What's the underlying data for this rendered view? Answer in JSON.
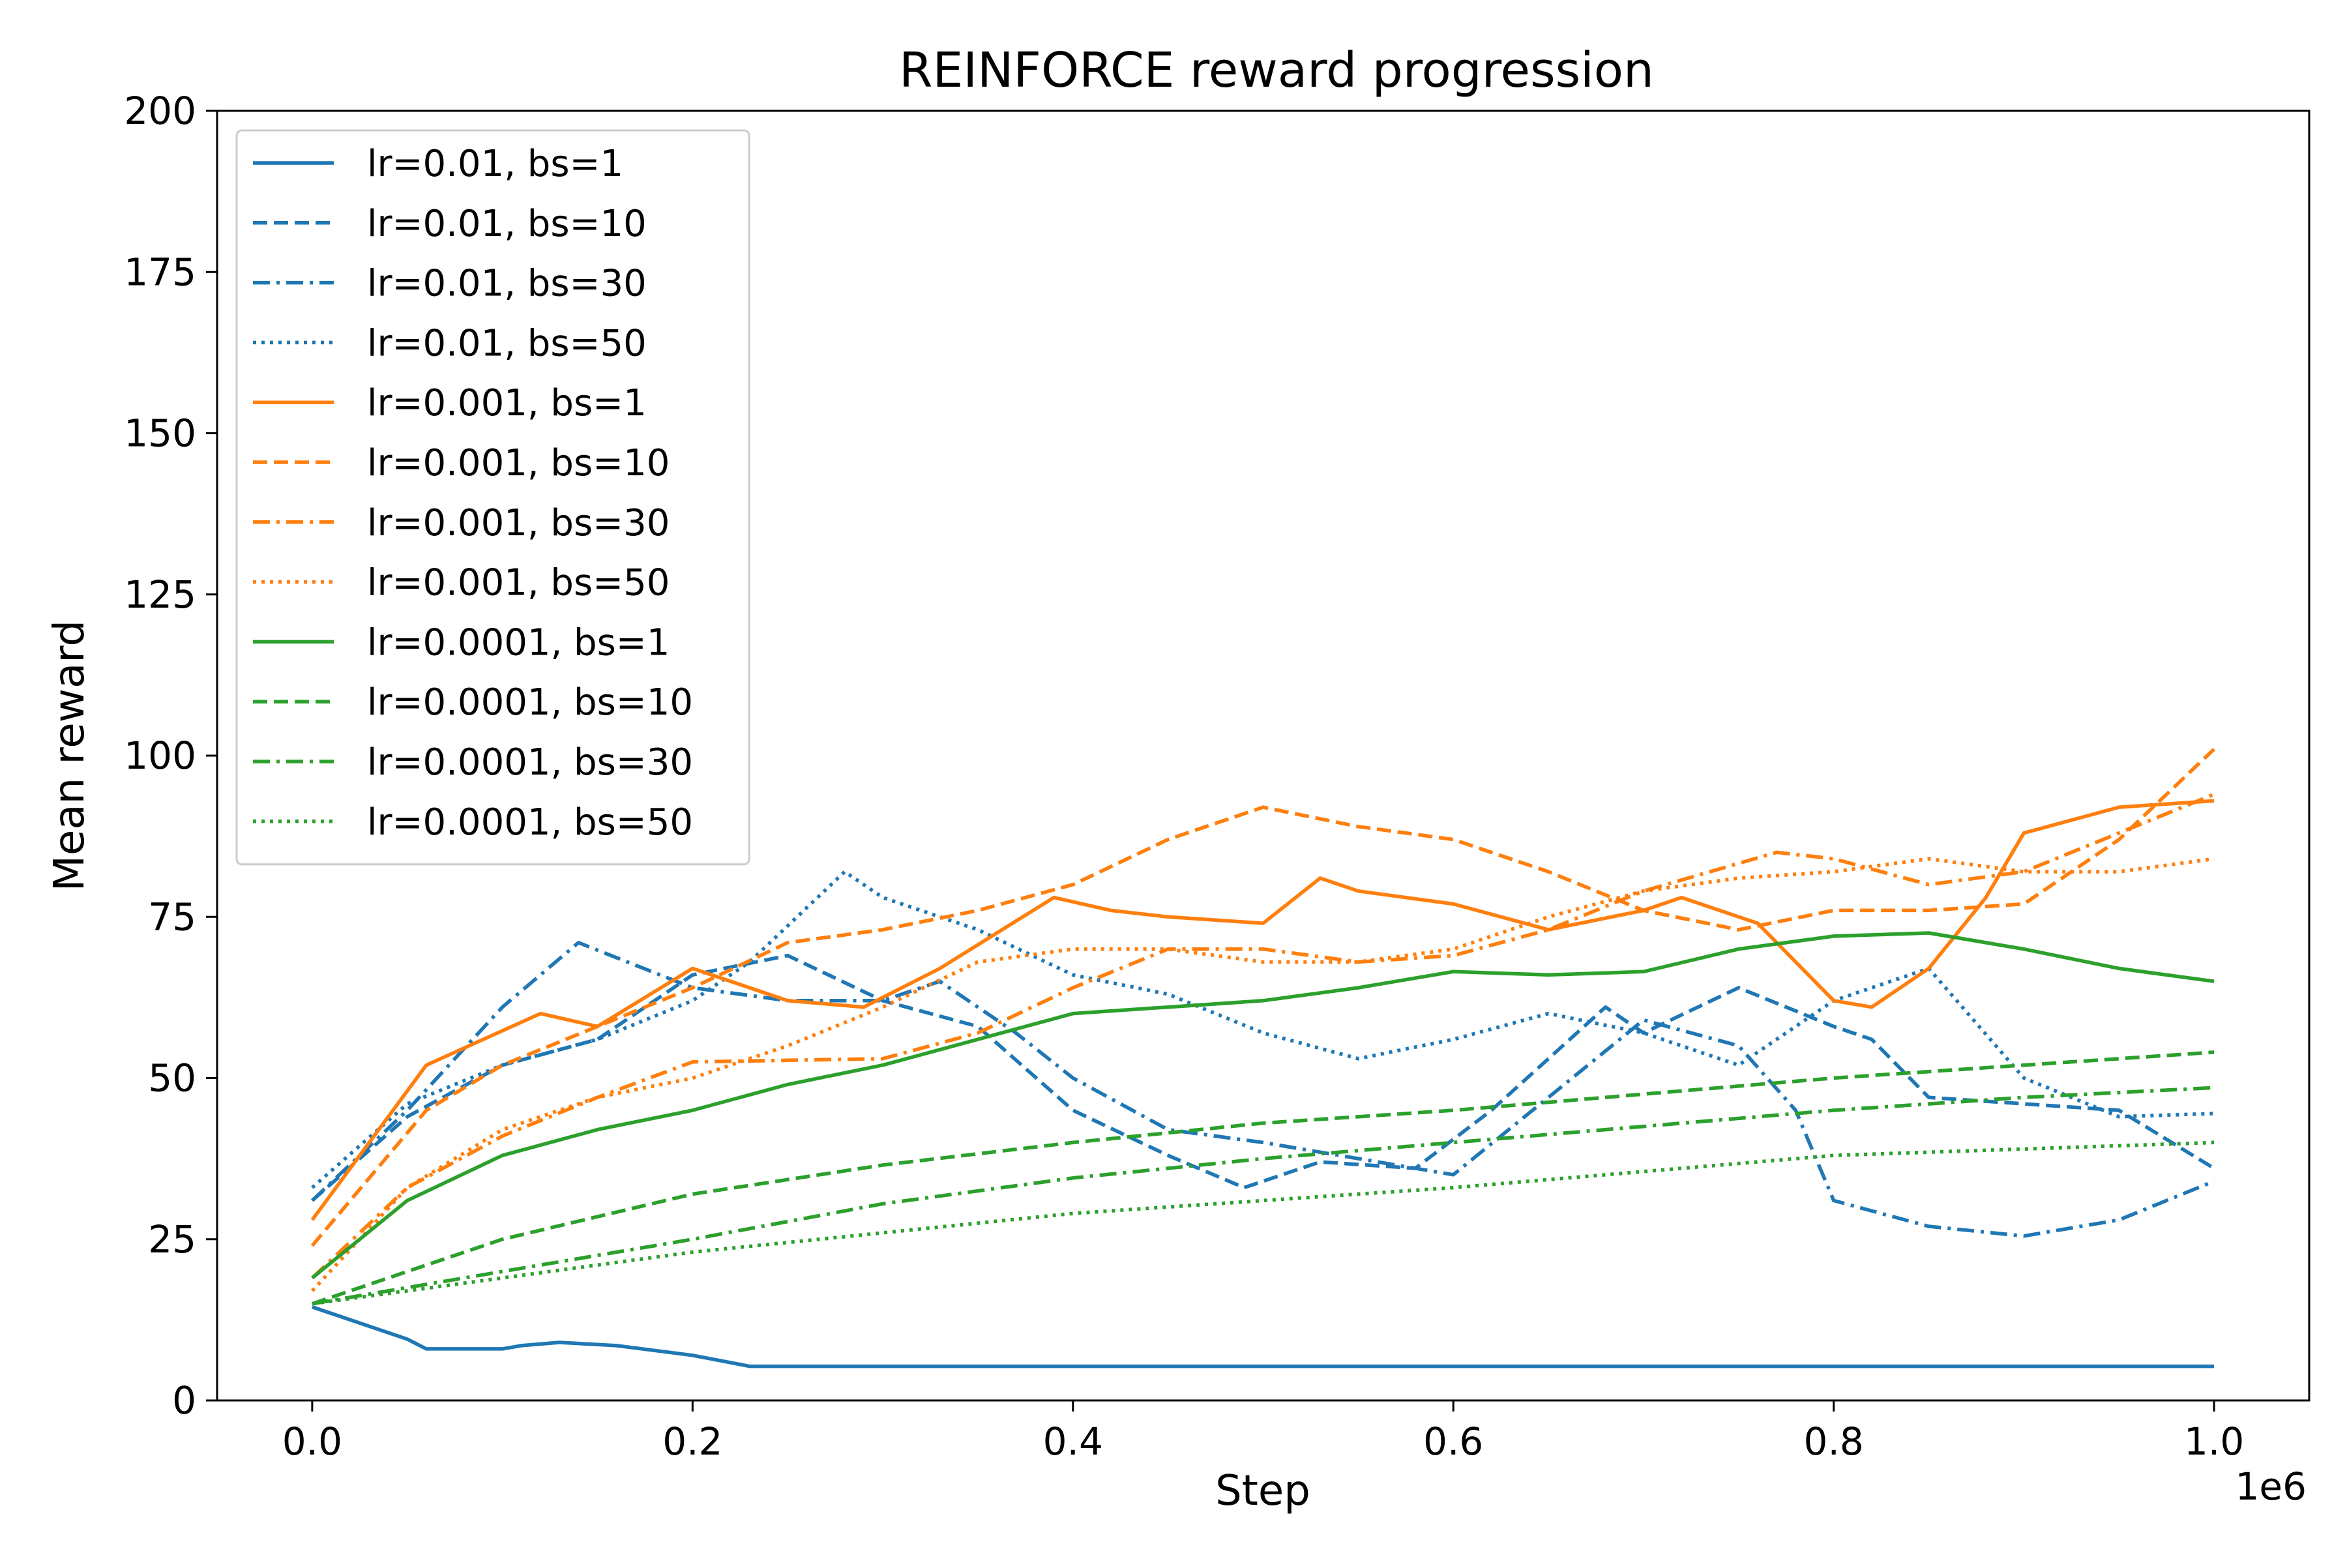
{
  "chart_data": {
    "type": "line",
    "title": "REINFORCE reward progression",
    "xlabel": "Step",
    "ylabel": "Mean reward",
    "x_offset_label": "1e6",
    "xlim": [
      -50000,
      1050000
    ],
    "ylim": [
      0,
      200
    ],
    "xticks": [
      0,
      200000,
      400000,
      600000,
      800000,
      1000000
    ],
    "xtick_labels": [
      "0.0",
      "0.2",
      "0.4",
      "0.6",
      "0.8",
      "1.0"
    ],
    "yticks": [
      0,
      25,
      50,
      75,
      100,
      125,
      150,
      175,
      200
    ],
    "ytick_labels": [
      "0",
      "25",
      "50",
      "75",
      "100",
      "125",
      "150",
      "175",
      "200"
    ],
    "grid": false,
    "legend_position": "upper-left",
    "series": [
      {
        "name": "lr=0.01, bs=1",
        "color": "#1f77b4",
        "dash": "solid",
        "x": [
          0,
          50000,
          60000,
          100000,
          110000,
          130000,
          160000,
          200000,
          230000,
          300000,
          400000,
          500000,
          600000,
          700000,
          800000,
          900000,
          1000000
        ],
        "y": [
          14.5,
          9.5,
          8,
          8,
          8.5,
          9,
          8.5,
          7,
          5.3,
          5.3,
          5.3,
          5.3,
          5.3,
          5.3,
          5.3,
          5.3,
          5.3
        ]
      },
      {
        "name": "lr=0.01, bs=10",
        "color": "#1f77b4",
        "dash": "dashed",
        "x": [
          0,
          50000,
          100000,
          150000,
          200000,
          250000,
          300000,
          350000,
          400000,
          450000,
          490000,
          530000,
          580000,
          620000,
          680000,
          700000,
          750000,
          800000,
          820000,
          850000,
          900000,
          950000,
          1000000
        ],
        "y": [
          31,
          44,
          52,
          56,
          66,
          69,
          62,
          58,
          45,
          38,
          33,
          37,
          36,
          45,
          61,
          57,
          64,
          58,
          56,
          47,
          46,
          45,
          36
        ]
      },
      {
        "name": "lr=0.01, bs=30",
        "color": "#1f77b4",
        "dash": "dashdot",
        "x": [
          0,
          50000,
          100000,
          140000,
          200000,
          250000,
          300000,
          330000,
          370000,
          400000,
          450000,
          500000,
          600000,
          700000,
          750000,
          780000,
          800000,
          850000,
          900000,
          950000,
          1000000
        ],
        "y": [
          31,
          45,
          61,
          71,
          64,
          62,
          62,
          65,
          57,
          50,
          42,
          40,
          35,
          59,
          55,
          45,
          31,
          27,
          25.5,
          28,
          34
        ]
      },
      {
        "name": "lr=0.01, bs=50",
        "color": "#1f77b4",
        "dash": "dotted",
        "x": [
          0,
          50000,
          100000,
          150000,
          200000,
          230000,
          280000,
          300000,
          350000,
          400000,
          450000,
          500000,
          550000,
          600000,
          650000,
          700000,
          750000,
          800000,
          850000,
          900000,
          950000,
          1000000
        ],
        "y": [
          33,
          46,
          52,
          56,
          62,
          68,
          82,
          78,
          73,
          66,
          63,
          57,
          53,
          56,
          60,
          57,
          52,
          62,
          67,
          50,
          44,
          44.5
        ]
      },
      {
        "name": "lr=0.001, bs=1",
        "color": "#ff7f0e",
        "dash": "solid",
        "x": [
          0,
          60000,
          120000,
          150000,
          200000,
          250000,
          290000,
          330000,
          390000,
          420000,
          450000,
          500000,
          530000,
          550000,
          600000,
          650000,
          700000,
          720000,
          760000,
          800000,
          820000,
          850000,
          880000,
          900000,
          950000,
          1000000
        ],
        "y": [
          28,
          52,
          60,
          58,
          67,
          62,
          61,
          67,
          78,
          76,
          75,
          74,
          81,
          79,
          77,
          73,
          76,
          78,
          74,
          62,
          61,
          67,
          78,
          88,
          92,
          93
        ]
      },
      {
        "name": "lr=0.001, bs=10",
        "color": "#ff7f0e",
        "dash": "dashed",
        "x": [
          0,
          60000,
          100000,
          150000,
          200000,
          250000,
          300000,
          350000,
          400000,
          450000,
          500000,
          550000,
          600000,
          650000,
          700000,
          750000,
          800000,
          850000,
          900000,
          950000,
          1000000
        ],
        "y": [
          24,
          45,
          52,
          58,
          64,
          71,
          73,
          76,
          80,
          87,
          92,
          89,
          87,
          82,
          76,
          73,
          76,
          76,
          77,
          87,
          101
        ]
      },
      {
        "name": "lr=0.001, bs=30",
        "color": "#ff7f0e",
        "dash": "dashdot",
        "x": [
          0,
          50000,
          100000,
          150000,
          200000,
          300000,
          350000,
          400000,
          450000,
          500000,
          550000,
          600000,
          650000,
          700000,
          770000,
          800000,
          850000,
          900000,
          950000,
          1000000
        ],
        "y": [
          19,
          33,
          41,
          47,
          52.5,
          53,
          57,
          64,
          70,
          70,
          68,
          69,
          73,
          79,
          85,
          84,
          80,
          82,
          88,
          94
        ]
      },
      {
        "name": "lr=0.001, bs=50",
        "color": "#ff7f0e",
        "dash": "dotted",
        "x": [
          0,
          50000,
          100000,
          150000,
          200000,
          250000,
          300000,
          350000,
          400000,
          450000,
          500000,
          550000,
          600000,
          650000,
          700000,
          750000,
          800000,
          850000,
          900000,
          950000,
          1000000
        ],
        "y": [
          17,
          33,
          42,
          47,
          50,
          55,
          61,
          68,
          70,
          70,
          68,
          68,
          70,
          75,
          79,
          81,
          82,
          84,
          82,
          82,
          84
        ]
      },
      {
        "name": "lr=0.0001, bs=1",
        "color": "#2ca02c",
        "dash": "solid",
        "x": [
          0,
          50000,
          100000,
          150000,
          200000,
          250000,
          300000,
          350000,
          400000,
          450000,
          500000,
          550000,
          600000,
          650000,
          700000,
          750000,
          800000,
          850000,
          900000,
          950000,
          1000000
        ],
        "y": [
          19,
          31,
          38,
          42,
          45,
          49,
          52,
          56,
          60,
          61,
          62,
          64,
          66.5,
          66,
          66.5,
          70,
          72,
          72.5,
          70,
          67,
          65
        ]
      },
      {
        "name": "lr=0.0001, bs=10",
        "color": "#2ca02c",
        "dash": "dashed",
        "x": [
          0,
          100000,
          200000,
          300000,
          400000,
          500000,
          600000,
          700000,
          800000,
          900000,
          1000000
        ],
        "y": [
          15,
          25,
          32,
          36.5,
          40,
          43,
          45,
          47.5,
          50,
          52,
          54
        ]
      },
      {
        "name": "lr=0.0001, bs=30",
        "color": "#2ca02c",
        "dash": "dashdot",
        "x": [
          0,
          100000,
          200000,
          300000,
          400000,
          500000,
          600000,
          700000,
          800000,
          900000,
          1000000
        ],
        "y": [
          15,
          20,
          25,
          30.5,
          34.5,
          37.5,
          40,
          42.5,
          45,
          47,
          48.5
        ]
      },
      {
        "name": "lr=0.0001, bs=50",
        "color": "#2ca02c",
        "dash": "dotted",
        "x": [
          0,
          100000,
          200000,
          300000,
          400000,
          500000,
          600000,
          700000,
          800000,
          900000,
          1000000
        ],
        "y": [
          15,
          19,
          23,
          26,
          29,
          31,
          33,
          35.5,
          38,
          39,
          40
        ]
      }
    ]
  }
}
